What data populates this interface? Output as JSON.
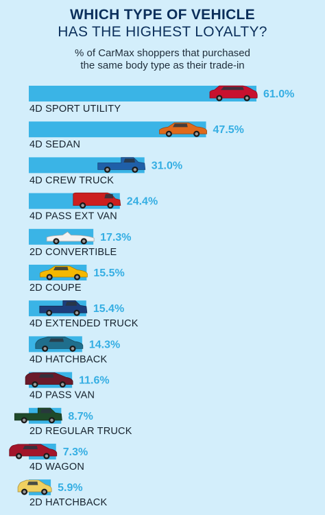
{
  "title_line1": "WHICH TYPE OF VEHICLE",
  "title_line2": "HAS THE HIGHEST LOYALTY?",
  "subtitle_line1": "% of CarMax shoppers that purchased",
  "subtitle_line2": "the same body type as their trade-in",
  "colors": {
    "bar": "#3ab4e6",
    "value_text": "#35aee3",
    "title": "#0b2f5b",
    "background": "#d3eefb"
  },
  "chart_data": {
    "type": "bar",
    "orientation": "horizontal",
    "title": "WHICH TYPE OF VEHICLE HAS THE HIGHEST LOYALTY?",
    "subtitle": "% of CarMax shoppers that purchased the same body type as their trade-in",
    "categories": [
      "4D SPORT UTILITY",
      "4D SEDAN",
      "4D CREW TRUCK",
      "4D PASS EXT VAN",
      "2D CONVERTIBLE",
      "2D COUPE",
      "4D EXTENDED TRUCK",
      "4D HATCHBACK",
      "4D PASS VAN",
      "2D REGULAR TRUCK",
      "4D WAGON",
      "2D HATCHBACK"
    ],
    "values": [
      61.0,
      47.5,
      31.0,
      24.4,
      17.3,
      15.5,
      15.4,
      14.3,
      11.6,
      8.7,
      7.3,
      5.9
    ],
    "value_labels": [
      "61.0%",
      "47.5%",
      "31.0%",
      "24.4%",
      "17.3%",
      "15.5%",
      "15.4%",
      "14.3%",
      "11.6%",
      "8.7%",
      "7.3%",
      "5.9%"
    ],
    "vehicle_icons": [
      {
        "name": "suv-icon",
        "color": "#c8102e",
        "shape": "suv"
      },
      {
        "name": "sedan-icon",
        "color": "#e06a1b",
        "shape": "sedan"
      },
      {
        "name": "crew-truck-icon",
        "color": "#1f5fa8",
        "shape": "truck"
      },
      {
        "name": "cargo-van-icon",
        "color": "#cc1f1f",
        "shape": "van"
      },
      {
        "name": "convertible-icon",
        "color": "#f2f2f2",
        "shape": "convertible"
      },
      {
        "name": "coupe-icon",
        "color": "#f5b800",
        "shape": "coupe"
      },
      {
        "name": "extended-truck-icon",
        "color": "#1d3d7a",
        "shape": "truck"
      },
      {
        "name": "hatchback-icon",
        "color": "#1f6e8c",
        "shape": "hatch"
      },
      {
        "name": "minivan-icon",
        "color": "#6b1a2a",
        "shape": "minivan"
      },
      {
        "name": "regular-truck-icon",
        "color": "#1f4a2a",
        "shape": "truck"
      },
      {
        "name": "wagon-icon",
        "color": "#a3152a",
        "shape": "wagon"
      },
      {
        "name": "small-hatchback-icon",
        "color": "#f0d060",
        "shape": "smallhatch"
      }
    ],
    "xlim": [
      0,
      61.0
    ],
    "grid": false,
    "legend": "none"
  }
}
